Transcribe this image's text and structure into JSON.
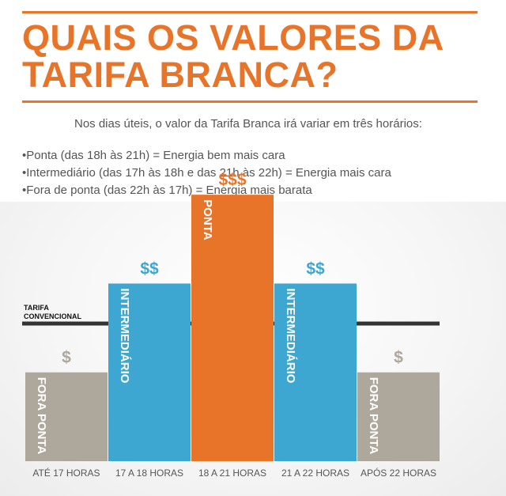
{
  "title_lines": [
    "QUAIS OS VALORES DA",
    "TARIFA BRANCA?"
  ],
  "intro": "Nos dias úteis, o valor da Tarifa Branca irá variar em três horários:",
  "bullets": [
    "Ponta (das 18h às 21h) = Energia bem mais cara",
    "Intermediário (das 17h às 18h e das 21h às 22h) = Energia mais cara",
    "Fora de ponta (das 22h às 17h) = Energia mais barata"
  ],
  "colors": {
    "accent": "#e8742a",
    "fora_ponta": "#aea79b",
    "intermediario": "#3da7d1",
    "ponta": "#e8742a",
    "convencional": "#333333",
    "text": "#555555"
  },
  "chart_data": {
    "type": "bar",
    "categories": [
      "ATÉ 17 HORAS",
      "17 A 18 HORAS",
      "18 A 21 HORAS",
      "21 A 22 HORAS",
      "APÓS 22 HORAS"
    ],
    "values": [
      1,
      2,
      3,
      2,
      1
    ],
    "bar_labels": [
      "FORA PONTA",
      "INTERMEDIÁRIO",
      "PONTA",
      "INTERMEDIÁRIO",
      "FORA PONTA"
    ],
    "price_labels": [
      "$",
      "$$",
      "$$$",
      "$$",
      "$"
    ],
    "bar_colors": [
      "#aea79b",
      "#3da7d1",
      "#e8742a",
      "#3da7d1",
      "#aea79b"
    ],
    "reference_line": {
      "label_lines": [
        "TARIFA",
        "CONVENCIONAL"
      ],
      "value": 1.55
    },
    "ylim": [
      0,
      3.5
    ]
  }
}
